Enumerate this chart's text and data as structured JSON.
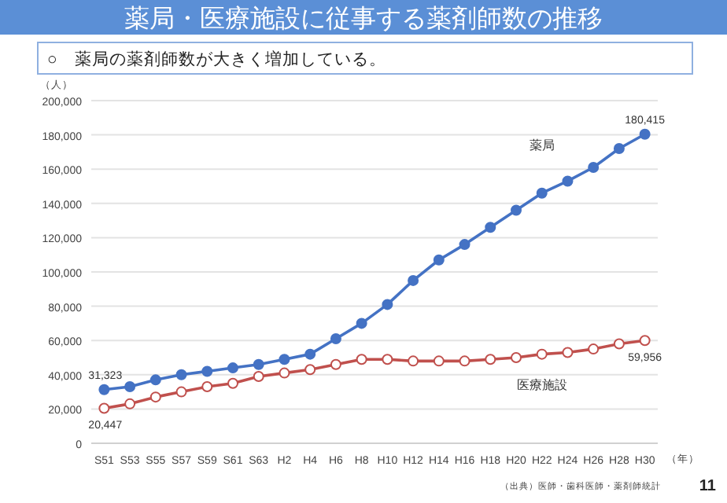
{
  "chart_data": {
    "type": "line",
    "title": "薬局・医療施設に従事する薬剤師数の推移",
    "subtitle": "○　薬局の薬剤師数が大きく増加している。",
    "ylabel": "（人）",
    "xlabel": "（年）",
    "categories": [
      "S51",
      "S53",
      "S55",
      "S57",
      "S59",
      "S61",
      "S63",
      "H2",
      "H4",
      "H6",
      "H8",
      "H10",
      "H12",
      "H14",
      "H16",
      "H18",
      "H20",
      "H22",
      "H24",
      "H26",
      "H28",
      "H30"
    ],
    "series": [
      {
        "name": "薬局",
        "color": "#4472c4",
        "marker": "circle",
        "values": [
          31323,
          33000,
          37000,
          40000,
          42000,
          44000,
          46000,
          49000,
          52000,
          61000,
          70000,
          81000,
          95000,
          107000,
          116000,
          126000,
          136000,
          146000,
          153000,
          161000,
          172000,
          180415
        ],
        "value_labels": [
          "31,323",
          null,
          null,
          null,
          null,
          null,
          null,
          null,
          null,
          null,
          null,
          null,
          null,
          null,
          null,
          null,
          null,
          null,
          null,
          null,
          null,
          "180,415"
        ]
      },
      {
        "name": "医療施設",
        "color": "#c0504d",
        "marker": "circle",
        "values": [
          20447,
          23000,
          27000,
          30000,
          33000,
          35000,
          39000,
          41000,
          43000,
          46000,
          49000,
          49000,
          48000,
          48000,
          48000,
          49000,
          50000,
          52000,
          53000,
          55000,
          58000,
          59956
        ],
        "value_labels": [
          "20,447",
          null,
          null,
          null,
          null,
          null,
          null,
          null,
          null,
          null,
          null,
          null,
          null,
          null,
          null,
          null,
          null,
          null,
          null,
          null,
          null,
          "59,956"
        ]
      }
    ],
    "ylim": [
      0,
      200000
    ],
    "yticks": [
      {
        "value": 0,
        "label": "0"
      },
      {
        "value": 20000,
        "label": "20,000"
      },
      {
        "value": 40000,
        "label": "40,000"
      },
      {
        "value": 60000,
        "label": "60,000"
      },
      {
        "value": 80000,
        "label": "80,000"
      },
      {
        "value": 100000,
        "label": "100,000"
      },
      {
        "value": 120000,
        "label": "120,000"
      },
      {
        "value": 140000,
        "label": "140,000"
      },
      {
        "value": 160000,
        "label": "160,000"
      },
      {
        "value": 180000,
        "label": "180,000"
      },
      {
        "value": 200000,
        "label": "200,000"
      }
    ],
    "grid": "y",
    "line_style": "solid",
    "annotations": [
      "（出典）医師・歯科医師・薬剤師統計",
      "11"
    ]
  }
}
